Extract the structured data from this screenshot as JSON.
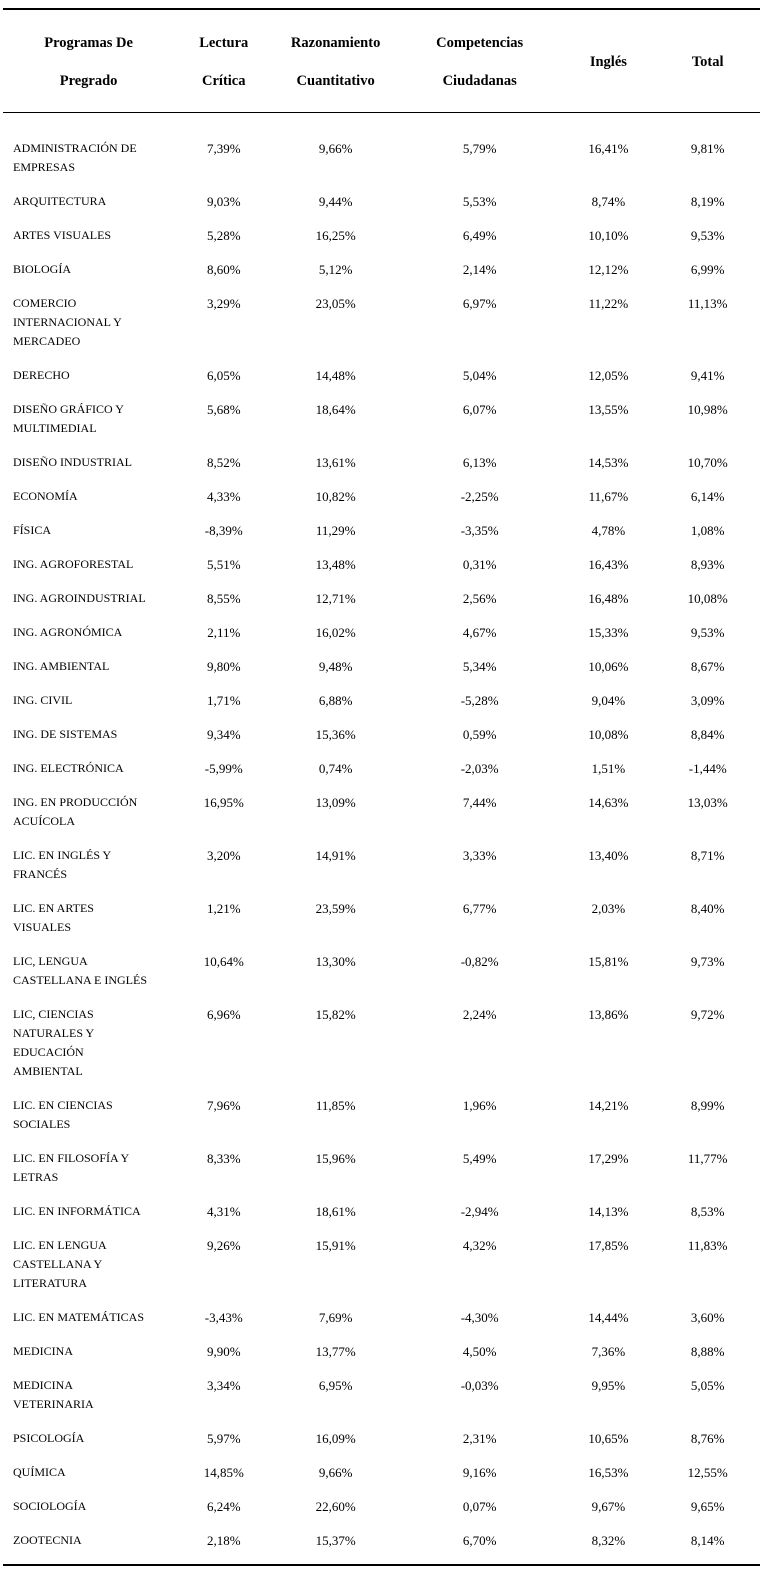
{
  "page": {
    "background_color": "#ffffff",
    "text_color": "#000000",
    "rule_color": "#000000"
  },
  "table": {
    "headers": [
      "Programas De Pregrado",
      "Lectura Crítica",
      "Razonamiento Cuantitativo",
      "Competencias Ciudadanas",
      "Inglés",
      "Total"
    ],
    "rows": [
      {
        "program": "ADMINISTRACIÓN DE EMPRESAS",
        "lectura_critica": "7,39%",
        "razonamiento_cuantitativo": "9,66%",
        "competencias_ciudadanas": "5,79%",
        "ingles": "16,41%",
        "total": "9,81%"
      },
      {
        "program": "ARQUITECTURA",
        "lectura_critica": "9,03%",
        "razonamiento_cuantitativo": "9,44%",
        "competencias_ciudadanas": "5,53%",
        "ingles": "8,74%",
        "total": "8,19%"
      },
      {
        "program": "ARTES VISUALES",
        "lectura_critica": "5,28%",
        "razonamiento_cuantitativo": "16,25%",
        "competencias_ciudadanas": "6,49%",
        "ingles": "10,10%",
        "total": "9,53%"
      },
      {
        "program": "BIOLOGÍA",
        "lectura_critica": "8,60%",
        "razonamiento_cuantitativo": "5,12%",
        "competencias_ciudadanas": "2,14%",
        "ingles": "12,12%",
        "total": "6,99%"
      },
      {
        "program": "COMERCIO INTERNACIONAL Y MERCADEO",
        "lectura_critica": "3,29%",
        "razonamiento_cuantitativo": "23,05%",
        "competencias_ciudadanas": "6,97%",
        "ingles": "11,22%",
        "total": "11,13%"
      },
      {
        "program": "DERECHO",
        "lectura_critica": "6,05%",
        "razonamiento_cuantitativo": "14,48%",
        "competencias_ciudadanas": "5,04%",
        "ingles": "12,05%",
        "total": "9,41%"
      },
      {
        "program": "DISEÑO GRÁFICO Y MULTIMEDIAL",
        "lectura_critica": "5,68%",
        "razonamiento_cuantitativo": "18,64%",
        "competencias_ciudadanas": "6,07%",
        "ingles": "13,55%",
        "total": "10,98%"
      },
      {
        "program": "DISEÑO INDUSTRIAL",
        "lectura_critica": "8,52%",
        "razonamiento_cuantitativo": "13,61%",
        "competencias_ciudadanas": "6,13%",
        "ingles": "14,53%",
        "total": "10,70%"
      },
      {
        "program": "ECONOMÍA",
        "lectura_critica": "4,33%",
        "razonamiento_cuantitativo": "10,82%",
        "competencias_ciudadanas": "-2,25%",
        "ingles": "11,67%",
        "total": "6,14%"
      },
      {
        "program": "FÍSICA",
        "lectura_critica": "-8,39%",
        "razonamiento_cuantitativo": "11,29%",
        "competencias_ciudadanas": "-3,35%",
        "ingles": "4,78%",
        "total": "1,08%"
      },
      {
        "program": "ING. AGROFORESTAL",
        "lectura_critica": "5,51%",
        "razonamiento_cuantitativo": "13,48%",
        "competencias_ciudadanas": "0,31%",
        "ingles": "16,43%",
        "total": "8,93%"
      },
      {
        "program": "ING. AGROINDUSTRIAL",
        "lectura_critica": "8,55%",
        "razonamiento_cuantitativo": "12,71%",
        "competencias_ciudadanas": "2,56%",
        "ingles": "16,48%",
        "total": "10,08%"
      },
      {
        "program": "ING. AGRONÓMICA",
        "lectura_critica": "2,11%",
        "razonamiento_cuantitativo": "16,02%",
        "competencias_ciudadanas": "4,67%",
        "ingles": "15,33%",
        "total": "9,53%"
      },
      {
        "program": "ING. AMBIENTAL",
        "lectura_critica": "9,80%",
        "razonamiento_cuantitativo": "9,48%",
        "competencias_ciudadanas": "5,34%",
        "ingles": "10,06%",
        "total": "8,67%"
      },
      {
        "program": "ING. CIVIL",
        "lectura_critica": "1,71%",
        "razonamiento_cuantitativo": "6,88%",
        "competencias_ciudadanas": "-5,28%",
        "ingles": "9,04%",
        "total": "3,09%"
      },
      {
        "program": "ING. DE SISTEMAS",
        "lectura_critica": "9,34%",
        "razonamiento_cuantitativo": "15,36%",
        "competencias_ciudadanas": "0,59%",
        "ingles": "10,08%",
        "total": "8,84%"
      },
      {
        "program": "ING. ELECTRÓNICA",
        "lectura_critica": "-5,99%",
        "razonamiento_cuantitativo": "0,74%",
        "competencias_ciudadanas": "-2,03%",
        "ingles": "1,51%",
        "total": "-1,44%"
      },
      {
        "program": "ING. EN PRODUCCIÓN ACUÍCOLA",
        "lectura_critica": "16,95%",
        "razonamiento_cuantitativo": "13,09%",
        "competencias_ciudadanas": "7,44%",
        "ingles": "14,63%",
        "total": "13,03%"
      },
      {
        "program": "LIC. EN INGLÉS Y FRANCÉS",
        "lectura_critica": "3,20%",
        "razonamiento_cuantitativo": "14,91%",
        "competencias_ciudadanas": "3,33%",
        "ingles": "13,40%",
        "total": "8,71%"
      },
      {
        "program": "LIC. EN ARTES VISUALES",
        "lectura_critica": "1,21%",
        "razonamiento_cuantitativo": "23,59%",
        "competencias_ciudadanas": "6,77%",
        "ingles": "2,03%",
        "total": "8,40%"
      },
      {
        "program": "LIC, LENGUA CASTELLANA E INGLÉS",
        "lectura_critica": "10,64%",
        "razonamiento_cuantitativo": "13,30%",
        "competencias_ciudadanas": "-0,82%",
        "ingles": "15,81%",
        "total": "9,73%"
      },
      {
        "program": "LIC, CIENCIAS NATURALES Y EDUCACIÓN AMBIENTAL",
        "lectura_critica": "6,96%",
        "razonamiento_cuantitativo": "15,82%",
        "competencias_ciudadanas": "2,24%",
        "ingles": "13,86%",
        "total": "9,72%"
      },
      {
        "program": "LIC. EN CIENCIAS SOCIALES",
        "lectura_critica": "7,96%",
        "razonamiento_cuantitativo": "11,85%",
        "competencias_ciudadanas": "1,96%",
        "ingles": "14,21%",
        "total": "8,99%"
      },
      {
        "program": "LIC. EN FILOSOFÍA Y LETRAS",
        "lectura_critica": "8,33%",
        "razonamiento_cuantitativo": "15,96%",
        "competencias_ciudadanas": "5,49%",
        "ingles": "17,29%",
        "total": "11,77%"
      },
      {
        "program": "LIC. EN INFORMÁTICA",
        "lectura_critica": "4,31%",
        "razonamiento_cuantitativo": "18,61%",
        "competencias_ciudadanas": "-2,94%",
        "ingles": "14,13%",
        "total": "8,53%"
      },
      {
        "program": "LIC. EN LENGUA CASTELLANA Y LITERATURA",
        "lectura_critica": "9,26%",
        "razonamiento_cuantitativo": "15,91%",
        "competencias_ciudadanas": "4,32%",
        "ingles": "17,85%",
        "total": "11,83%"
      },
      {
        "program": "LIC. EN MATEMÁTICAS",
        "lectura_critica": "-3,43%",
        "razonamiento_cuantitativo": "7,69%",
        "competencias_ciudadanas": "-4,30%",
        "ingles": "14,44%",
        "total": "3,60%"
      },
      {
        "program": "MEDICINA",
        "lectura_critica": "9,90%",
        "razonamiento_cuantitativo": "13,77%",
        "competencias_ciudadanas": "4,50%",
        "ingles": "7,36%",
        "total": "8,88%"
      },
      {
        "program": "MEDICINA VETERINARIA",
        "lectura_critica": "3,34%",
        "razonamiento_cuantitativo": "6,95%",
        "competencias_ciudadanas": "-0,03%",
        "ingles": "9,95%",
        "total": "5,05%"
      },
      {
        "program": "PSICOLOGÍA",
        "lectura_critica": "5,97%",
        "razonamiento_cuantitativo": "16,09%",
        "competencias_ciudadanas": "2,31%",
        "ingles": "10,65%",
        "total": "8,76%"
      },
      {
        "program": "QUÍMICA",
        "lectura_critica": "14,85%",
        "razonamiento_cuantitativo": "9,66%",
        "competencias_ciudadanas": "9,16%",
        "ingles": "16,53%",
        "total": "12,55%"
      },
      {
        "program": "SOCIOLOGÍA",
        "lectura_critica": "6,24%",
        "razonamiento_cuantitativo": "22,60%",
        "competencias_ciudadanas": "0,07%",
        "ingles": "9,67%",
        "total": "9,65%"
      },
      {
        "program": "ZOOTECNIA",
        "lectura_critica": "2,18%",
        "razonamiento_cuantitativo": "15,37%",
        "competencias_ciudadanas": "6,70%",
        "ingles": "8,32%",
        "total": "8,14%"
      }
    ]
  }
}
